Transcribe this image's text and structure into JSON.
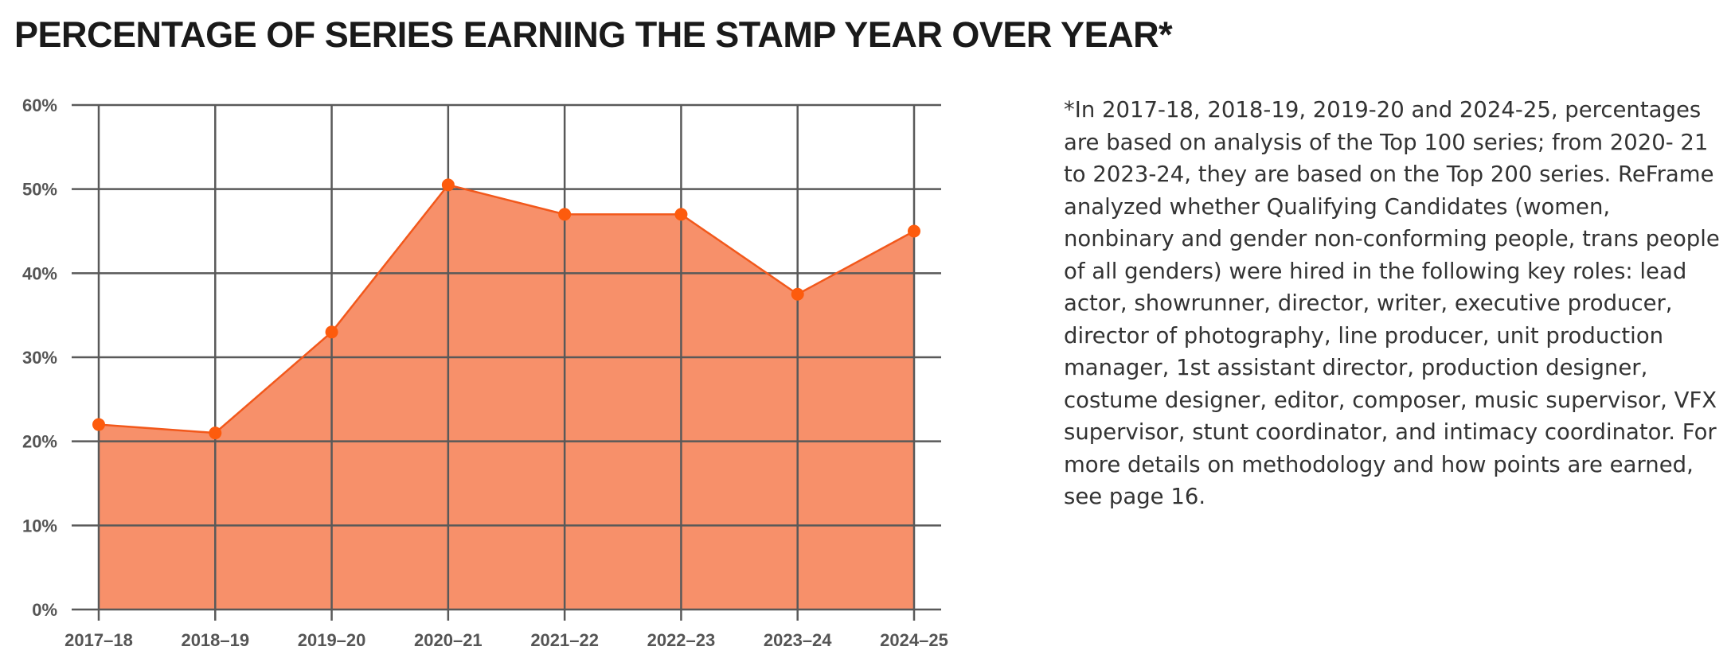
{
  "title": "PERCENTAGE OF SERIES EARNING THE STAMP YEAR OVER YEAR*",
  "footnote": "*In 2017-18, 2018-19, 2019-20 and 2024-25, percentages are based on analysis of the Top 100 series; from 2020- 21 to 2023-24, they are based on the Top 200 series. ReFrame analyzed whether Qualifying Candidates (women, nonbinary and gender non-conforming people, trans people of all genders) were hired in the following key roles: lead actor, showrunner, director, writer, executive producer, director of photography, line producer, unit production manager, 1st assistant director, production designer, costume designer, editor, composer, music supervisor, VFX supervisor, stunt coordinator, and intimacy coordinator. For more details on methodology and how points are earned, see page 16.",
  "colors": {
    "area_fill": "#f7906a",
    "line": "#f2581b",
    "marker": "#fd5b0d",
    "grid": "#595959"
  },
  "chart_data": {
    "type": "area",
    "categories": [
      "2017–18",
      "2018–19",
      "2019–20",
      "2020–21",
      "2021–22",
      "2022–23",
      "2023–24",
      "2024–25"
    ],
    "values": [
      22,
      21,
      33,
      50.5,
      47,
      47,
      37.5,
      45
    ],
    "ylim": [
      0,
      60
    ],
    "yticks": [
      0,
      10,
      20,
      30,
      40,
      50,
      60
    ],
    "ytick_labels": [
      "0%",
      "10%",
      "20%",
      "30%",
      "40%",
      "50%",
      "60%"
    ],
    "grid": true
  }
}
